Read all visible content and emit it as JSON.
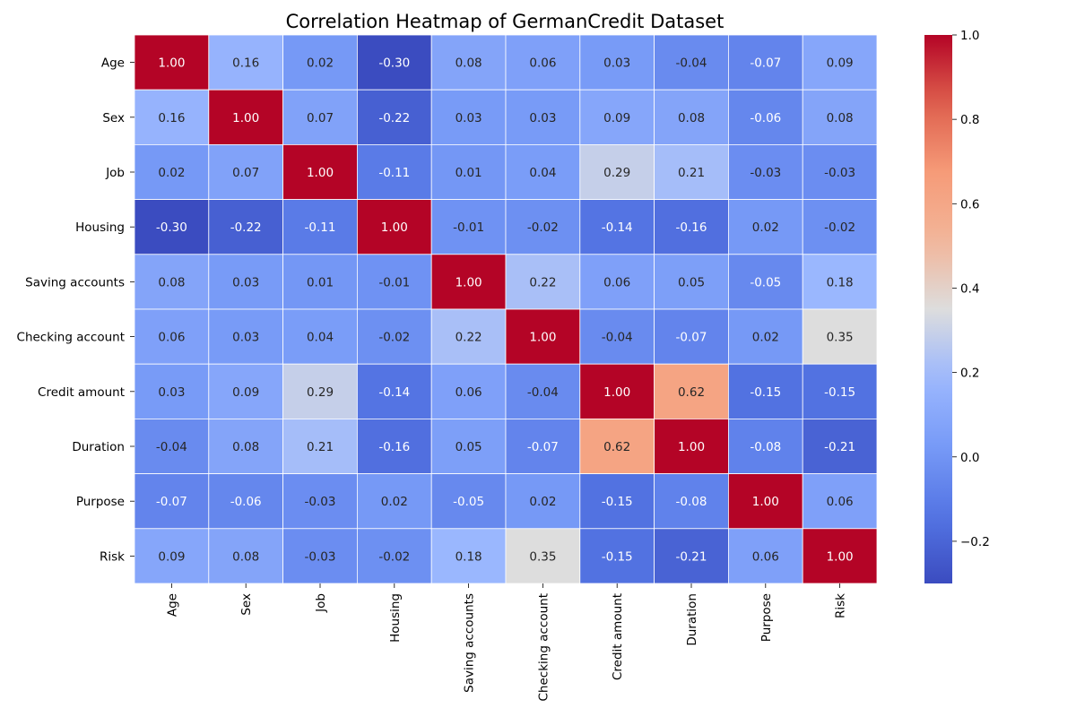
{
  "chart_data": {
    "type": "heatmap",
    "title": "Correlation Heatmap of GermanCredit Dataset",
    "xlabel": "",
    "ylabel": "",
    "variables": [
      "Age",
      "Sex",
      "Job",
      "Housing",
      "Saving accounts",
      "Checking account",
      "Credit amount",
      "Duration",
      "Purpose",
      "Risk"
    ],
    "matrix": [
      [
        1.0,
        0.16,
        0.02,
        -0.3,
        0.08,
        0.06,
        0.03,
        -0.04,
        -0.07,
        0.09
      ],
      [
        0.16,
        1.0,
        0.07,
        -0.22,
        0.03,
        0.03,
        0.09,
        0.08,
        -0.06,
        0.08
      ],
      [
        0.02,
        0.07,
        1.0,
        -0.11,
        0.01,
        0.04,
        0.29,
        0.21,
        -0.03,
        -0.03
      ],
      [
        -0.3,
        -0.22,
        -0.11,
        1.0,
        -0.01,
        -0.02,
        -0.14,
        -0.16,
        0.02,
        -0.02
      ],
      [
        0.08,
        0.03,
        0.01,
        -0.01,
        1.0,
        0.22,
        0.06,
        0.05,
        -0.05,
        0.18
      ],
      [
        0.06,
        0.03,
        0.04,
        -0.02,
        0.22,
        1.0,
        -0.04,
        -0.07,
        0.02,
        0.35
      ],
      [
        0.03,
        0.09,
        0.29,
        -0.14,
        0.06,
        -0.04,
        1.0,
        0.62,
        -0.15,
        -0.15
      ],
      [
        -0.04,
        0.08,
        0.21,
        -0.16,
        0.05,
        -0.07,
        0.62,
        1.0,
        -0.08,
        -0.21
      ],
      [
        -0.07,
        -0.06,
        -0.03,
        0.02,
        -0.05,
        0.02,
        -0.15,
        -0.08,
        1.0,
        0.06
      ],
      [
        0.09,
        0.08,
        -0.03,
        -0.02,
        0.18,
        0.35,
        -0.15,
        -0.21,
        0.06,
        1.0
      ]
    ],
    "colormap": "coolwarm",
    "value_range": [
      -0.3,
      1.0
    ],
    "colorbar_ticks": [
      -0.2,
      0.0,
      0.2,
      0.4,
      0.6,
      0.8,
      1.0
    ],
    "colorbar_tick_labels": [
      "−0.2",
      "0.0",
      "0.2",
      "0.4",
      "0.6",
      "0.8",
      "1.0"
    ],
    "annotation_format": "0.00",
    "grid_line_color": "#ffffff",
    "legend": "colorbar-right"
  }
}
